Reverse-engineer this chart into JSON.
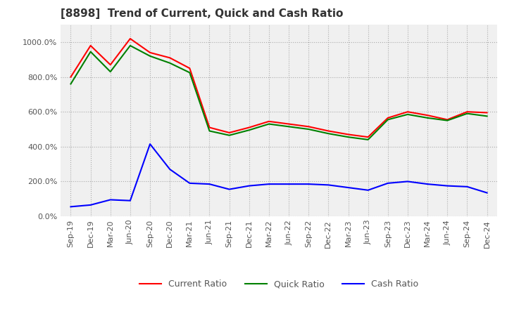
{
  "title": "[8898]  Trend of Current, Quick and Cash Ratio",
  "x_labels": [
    "Sep-19",
    "Dec-19",
    "Mar-20",
    "Jun-20",
    "Sep-20",
    "Dec-20",
    "Mar-21",
    "Jun-21",
    "Sep-21",
    "Dec-21",
    "Mar-22",
    "Jun-22",
    "Sep-22",
    "Dec-22",
    "Mar-23",
    "Jun-23",
    "Sep-23",
    "Dec-23",
    "Mar-24",
    "Jun-24",
    "Sep-24",
    "Dec-24"
  ],
  "current_ratio": [
    800,
    980,
    870,
    1020,
    940,
    910,
    850,
    510,
    480,
    510,
    545,
    530,
    515,
    490,
    470,
    455,
    565,
    600,
    580,
    555,
    600,
    595
  ],
  "quick_ratio": [
    760,
    945,
    830,
    980,
    920,
    880,
    825,
    490,
    465,
    495,
    530,
    515,
    500,
    475,
    455,
    440,
    555,
    585,
    565,
    550,
    590,
    575
  ],
  "cash_ratio": [
    55,
    65,
    95,
    90,
    415,
    270,
    190,
    185,
    155,
    175,
    185,
    185,
    185,
    180,
    165,
    150,
    190,
    200,
    185,
    175,
    170,
    135
  ],
  "current_color": "#FF0000",
  "quick_color": "#008000",
  "cash_color": "#0000FF",
  "background_color": "#FFFFFF",
  "plot_bg_color": "#F0F0F0",
  "grid_color": "#AAAAAA",
  "ylim": [
    0,
    1100
  ],
  "yticks": [
    0,
    200,
    400,
    600,
    800,
    1000
  ],
  "ytick_labels": [
    "0.0%",
    "200.0%",
    "400.0%",
    "600.0%",
    "800.0%",
    "1000.0%"
  ],
  "title_fontsize": 11,
  "tick_fontsize": 8,
  "legend_fontsize": 9
}
